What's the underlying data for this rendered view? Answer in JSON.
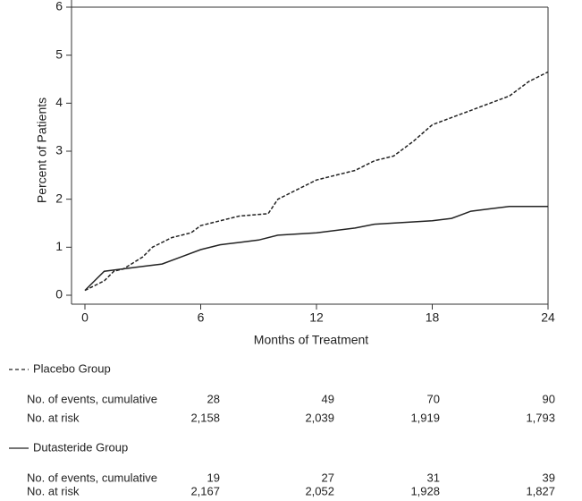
{
  "chart_data": {
    "type": "line",
    "xlabel": "Months of Treatment",
    "ylabel": "Percent of Patients",
    "xlim": [
      0,
      24
    ],
    "ylim": [
      0,
      6
    ],
    "xticks": [
      0,
      6,
      12,
      18,
      24
    ],
    "yticks": [
      0,
      1,
      2,
      3,
      4,
      5,
      6
    ],
    "series": [
      {
        "name": "Placebo Group",
        "color": "#222222",
        "style": "dashed",
        "x": [
          0,
          1,
          1.5,
          2,
          3,
          3.5,
          4,
          4.5,
          5.5,
          6,
          7,
          8,
          9.5,
          10,
          11,
          12,
          13,
          14,
          15,
          16,
          17,
          18,
          19,
          20,
          21,
          22,
          23,
          24
        ],
        "values": [
          0.1,
          0.3,
          0.5,
          0.55,
          0.8,
          1.0,
          1.1,
          1.2,
          1.3,
          1.45,
          1.55,
          1.65,
          1.7,
          2.0,
          2.2,
          2.4,
          2.5,
          2.6,
          2.8,
          2.9,
          3.2,
          3.55,
          3.7,
          3.85,
          4.0,
          4.15,
          4.45,
          4.65
        ]
      },
      {
        "name": "Dutasteride Group",
        "color": "#222222",
        "style": "solid",
        "x": [
          0,
          0.5,
          1,
          2,
          3,
          4,
          5,
          6,
          7,
          8,
          9,
          10,
          12,
          14,
          15,
          18,
          19,
          20,
          21,
          22,
          24
        ],
        "values": [
          0.1,
          0.3,
          0.5,
          0.55,
          0.6,
          0.65,
          0.8,
          0.95,
          1.05,
          1.1,
          1.15,
          1.25,
          1.3,
          1.4,
          1.48,
          1.55,
          1.6,
          1.75,
          1.8,
          1.85,
          1.85
        ]
      }
    ],
    "table": {
      "groups": [
        {
          "rows": [
            {
              "label": "No. of events, cumulative",
              "values": [
                "28",
                "49",
                "70",
                "90"
              ]
            },
            {
              "label": "No. at risk",
              "values": [
                "2,158",
                "2,039",
                "1,919",
                "1,793"
              ]
            }
          ]
        },
        {
          "rows": [
            {
              "label": "No. of events, cumulative",
              "values": [
                "19",
                "27",
                "31",
                "39"
              ]
            },
            {
              "label": "No. at risk",
              "values": [
                "2,167",
                "2,052",
                "1,928",
                "1,827"
              ]
            }
          ]
        }
      ]
    }
  }
}
